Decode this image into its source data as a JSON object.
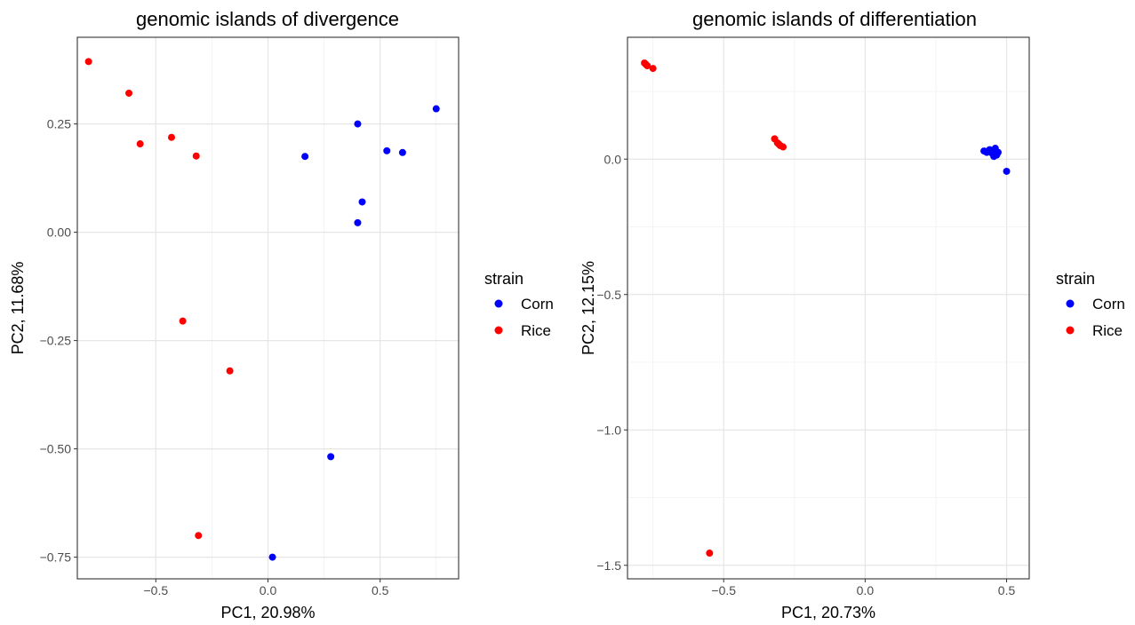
{
  "chart_data": [
    {
      "type": "scatter",
      "title": "genomic islands of divergence",
      "xlabel": "PC1, 20.98%",
      "ylabel": "PC2, 11.68%",
      "xlim": [
        -0.85,
        0.85
      ],
      "ylim": [
        -0.8,
        0.45
      ],
      "xticks": [
        -0.5,
        -0.25,
        0,
        0.25,
        0.5,
        0.75
      ],
      "xtick_labels": [
        "−0.5",
        "",
        "0.0",
        "",
        "0.5",
        ""
      ],
      "yticks": [
        -0.75,
        -0.5,
        -0.25,
        0,
        0.25
      ],
      "ytick_labels": [
        "−0.75",
        "−0.50",
        "−0.25",
        "0.00",
        "0.25"
      ],
      "grid": true,
      "legend": {
        "title": "strain",
        "position": "right"
      },
      "series": [
        {
          "name": "Corn",
          "color": "#0000ff",
          "points": [
            [
              0.75,
              0.285
            ],
            [
              0.4,
              0.25
            ],
            [
              0.53,
              0.188
            ],
            [
              0.6,
              0.184
            ],
            [
              0.165,
              0.175
            ],
            [
              0.42,
              0.07
            ],
            [
              0.4,
              0.022
            ],
            [
              0.28,
              -0.518
            ],
            [
              0.02,
              -0.75
            ]
          ]
        },
        {
          "name": "Rice",
          "color": "#ff0000",
          "points": [
            [
              -0.8,
              0.394
            ],
            [
              -0.62,
              0.321
            ],
            [
              -0.43,
              0.219
            ],
            [
              -0.57,
              0.204
            ],
            [
              -0.32,
              0.176
            ],
            [
              -0.38,
              -0.205
            ],
            [
              -0.17,
              -0.32
            ],
            [
              -0.31,
              -0.7
            ]
          ]
        }
      ]
    },
    {
      "type": "scatter",
      "title": "genomic islands of differentiation",
      "xlabel": "PC1, 20.73%",
      "ylabel": "PC2, 12.15%",
      "xlim": [
        -0.84,
        0.58
      ],
      "ylim": [
        -1.55,
        0.45
      ],
      "xticks": [
        -0.75,
        -0.5,
        -0.25,
        0,
        0.25,
        0.5
      ],
      "xtick_labels": [
        "",
        "−0.5",
        "",
        "0.0",
        "",
        "0.5"
      ],
      "yticks": [
        -1.5,
        -1.25,
        -1.0,
        -0.75,
        -0.5,
        -0.25,
        0,
        0.25
      ],
      "ytick_labels": [
        "−1.5",
        "",
        "−1.0",
        "",
        "−0.5",
        "",
        "0.0",
        ""
      ],
      "grid": true,
      "legend": {
        "title": "strain",
        "position": "right"
      },
      "series": [
        {
          "name": "Corn",
          "color": "#0000ff",
          "points": [
            [
              0.42,
              0.03
            ],
            [
              0.43,
              0.025
            ],
            [
              0.44,
              0.035
            ],
            [
              0.45,
              0.02
            ],
            [
              0.46,
              0.04
            ],
            [
              0.455,
              0.01
            ],
            [
              0.465,
              0.015
            ],
            [
              0.47,
              0.025
            ],
            [
              0.435,
              0.03
            ],
            [
              0.5,
              -0.045
            ]
          ]
        },
        {
          "name": "Rice",
          "color": "#ff0000",
          "points": [
            [
              -0.78,
              0.355
            ],
            [
              -0.775,
              0.35
            ],
            [
              -0.77,
              0.345
            ],
            [
              -0.75,
              0.335
            ],
            [
              -0.32,
              0.075
            ],
            [
              -0.31,
              0.06
            ],
            [
              -0.305,
              0.055
            ],
            [
              -0.3,
              0.05
            ],
            [
              -0.29,
              0.045
            ],
            [
              -0.55,
              -1.455
            ]
          ]
        }
      ]
    }
  ]
}
